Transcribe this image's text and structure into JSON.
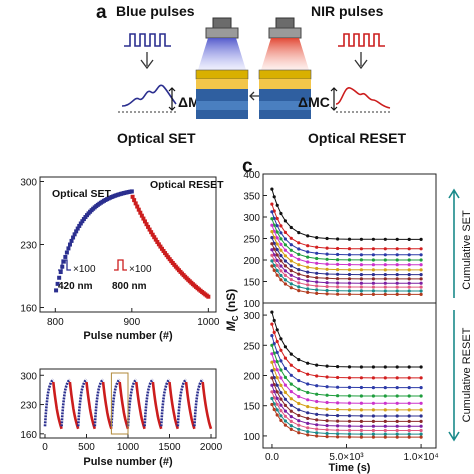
{
  "colors": {
    "blue": "#2b2f8f",
    "red": "#cc1d1d",
    "teal": "#1a8a8a"
  },
  "panel_a": {
    "letter": "a",
    "blue_title": "Blue pulses",
    "nir_title": "NIR pulses",
    "dm_label": "ΔMC",
    "set_label": "Optical SET",
    "reset_label": "Optical RESET"
  },
  "panel_c": {
    "letter": "c"
  },
  "chart_data": [
    {
      "type": "scatter",
      "id": "top-left",
      "xlabel": "Pulse number (#)",
      "ylabel": "",
      "xlim": [
        780,
        1010
      ],
      "ylim": [
        155,
        305
      ],
      "xticks": [
        800,
        900,
        1000
      ],
      "yticks": [
        160,
        230,
        300
      ],
      "annotations": [
        "Optical SET",
        "Optical RESET",
        "×100",
        "×100",
        "420 nm",
        "800 nm"
      ],
      "series": [
        {
          "name": "Optical SET",
          "color": "#2b2f8f",
          "x_start": 801,
          "x_end": 900,
          "y_start": 179,
          "y_end": 289
        },
        {
          "name": "Optical RESET",
          "color": "#cc1d1d",
          "x_start": 901,
          "x_end": 1000,
          "y_start": 283,
          "y_end": 172
        }
      ]
    },
    {
      "type": "scatter",
      "id": "bottom-left",
      "xlabel": "Pulse number (#)",
      "ylabel": "",
      "xlim": [
        -60,
        2060
      ],
      "ylim": [
        150,
        315
      ],
      "xticks": [
        0,
        500,
        1000,
        1500,
        2000
      ],
      "yticks": [
        160,
        230,
        300
      ],
      "cycles": 10,
      "cycle_length": 200,
      "highlight_box": [
        800,
        1000
      ]
    },
    {
      "type": "line",
      "id": "right",
      "xlabel": "Time (s)",
      "ylabel": "MC (nS)",
      "xlim": [
        -600,
        11000
      ],
      "xticks": [
        0,
        5000,
        10000
      ],
      "xtick_labels": [
        "0.0",
        "5.0×10³",
        "1.0×10⁴"
      ],
      "top_ylim": [
        100,
        400
      ],
      "bottom_ylim": [
        80,
        320
      ],
      "top_yticks": [
        100,
        150,
        200,
        250,
        300,
        350,
        400
      ],
      "bottom_yticks": [
        100,
        150,
        200,
        250,
        300
      ],
      "top_arrow_label": "Cumulative SET",
      "bottom_arrow_label": "Cumulative RESET",
      "top_series": [
        {
          "start": 365,
          "end": 248,
          "color": "#111111"
        },
        {
          "start": 330,
          "end": 226,
          "color": "#d21f1f"
        },
        {
          "start": 312,
          "end": 212,
          "color": "#2c3aa8"
        },
        {
          "start": 296,
          "end": 200,
          "color": "#1f9e3d"
        },
        {
          "start": 281,
          "end": 189,
          "color": "#cc33cc"
        },
        {
          "start": 266,
          "end": 177,
          "color": "#d4a017"
        },
        {
          "start": 252,
          "end": 166,
          "color": "#2b2f8f"
        },
        {
          "start": 238,
          "end": 156,
          "color": "#8b2a2a"
        },
        {
          "start": 224,
          "end": 146,
          "color": "#7b1fa2"
        },
        {
          "start": 211,
          "end": 137,
          "color": "#e05a80"
        },
        {
          "start": 198,
          "end": 128,
          "color": "#1a8a8a"
        },
        {
          "start": 186,
          "end": 120,
          "color": "#b23a1e"
        }
      ],
      "bottom_series": [
        {
          "start": 305,
          "end": 214,
          "color": "#111111"
        },
        {
          "start": 285,
          "end": 196,
          "color": "#d21f1f"
        },
        {
          "start": 266,
          "end": 180,
          "color": "#2c3aa8"
        },
        {
          "start": 250,
          "end": 166,
          "color": "#1f9e3d"
        },
        {
          "start": 236,
          "end": 154,
          "color": "#cc33cc"
        },
        {
          "start": 222,
          "end": 143,
          "color": "#d4a017"
        },
        {
          "start": 208,
          "end": 133,
          "color": "#2b2f8f"
        },
        {
          "start": 196,
          "end": 124,
          "color": "#8b2a2a"
        },
        {
          "start": 184,
          "end": 116,
          "color": "#7b1fa2"
        },
        {
          "start": 173,
          "end": 109,
          "color": "#e05a80"
        },
        {
          "start": 162,
          "end": 103,
          "color": "#1a8a8a"
        },
        {
          "start": 152,
          "end": 98,
          "color": "#b23a1e"
        }
      ]
    }
  ]
}
